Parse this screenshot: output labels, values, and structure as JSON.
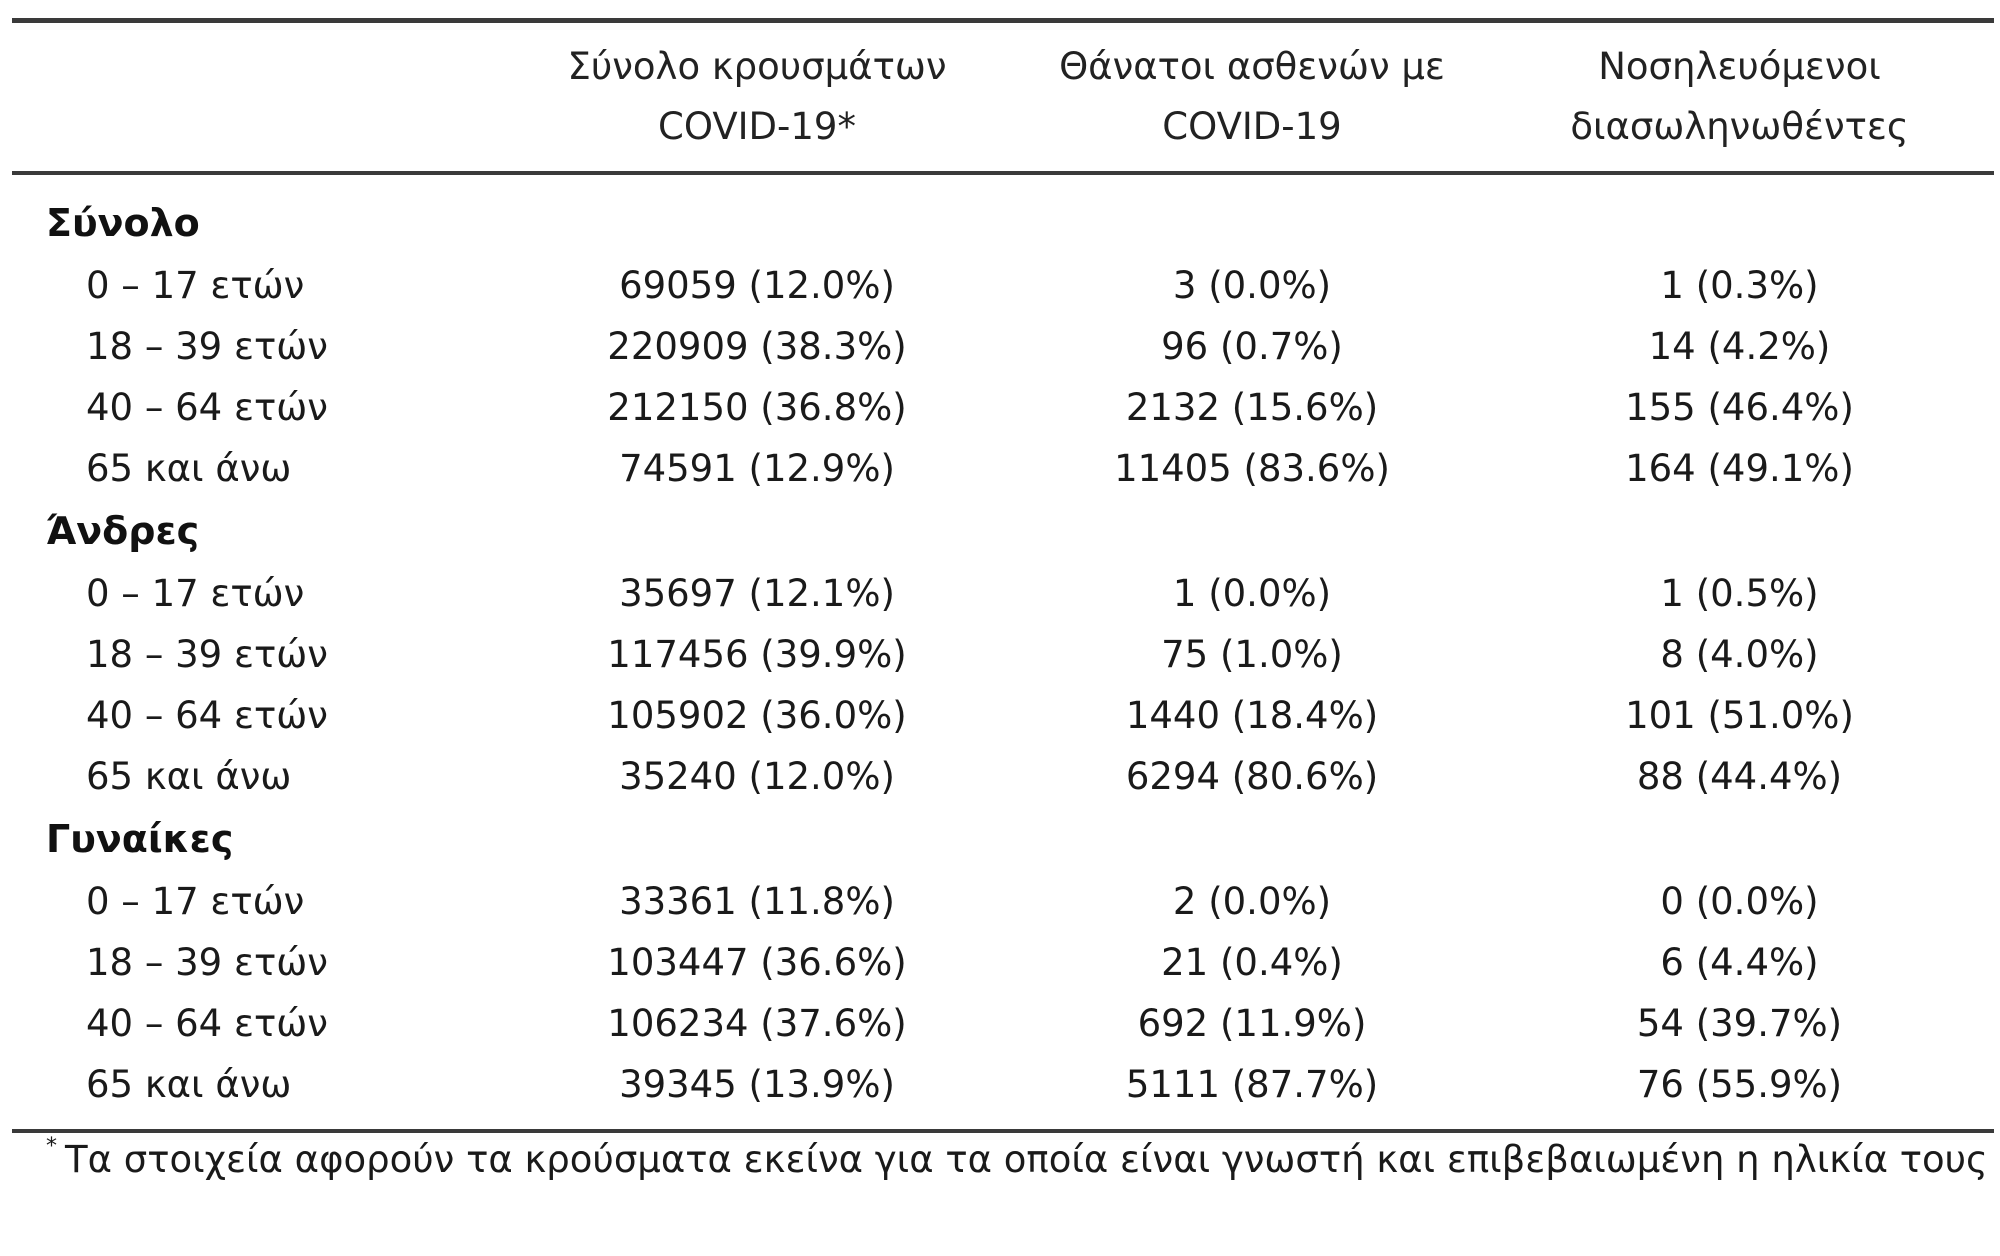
{
  "header": {
    "col1_line1": "Σύνολο κρουσμάτων",
    "col1_line2": "COVID-19*",
    "col2_line1": "Θάνατοι ασθενών με",
    "col2_line2": "COVID-19",
    "col3_line1": "Νοσηλευόμενοι",
    "col3_line2": "διασωληνωθέντες"
  },
  "groups": [
    {
      "title": "Σύνολο",
      "rows": [
        {
          "label": "0 – 17 ετών",
          "cases": "69059 (12.0%)",
          "deaths": "3 (0.0%)",
          "intubated": "1 (0.3%)"
        },
        {
          "label": "18 – 39 ετών",
          "cases": "220909 (38.3%)",
          "deaths": "96 (0.7%)",
          "intubated": "14 (4.2%)"
        },
        {
          "label": "40 – 64 ετών",
          "cases": "212150 (36.8%)",
          "deaths": "2132 (15.6%)",
          "intubated": "155 (46.4%)"
        },
        {
          "label": "65 και άνω",
          "cases": "74591 (12.9%)",
          "deaths": "11405 (83.6%)",
          "intubated": "164 (49.1%)"
        }
      ]
    },
    {
      "title": "Άνδρες",
      "rows": [
        {
          "label": "0 – 17 ετών",
          "cases": "35697 (12.1%)",
          "deaths": "1 (0.0%)",
          "intubated": "1 (0.5%)"
        },
        {
          "label": "18 – 39 ετών",
          "cases": "117456 (39.9%)",
          "deaths": "75 (1.0%)",
          "intubated": "8 (4.0%)"
        },
        {
          "label": "40 – 64 ετών",
          "cases": "105902 (36.0%)",
          "deaths": "1440 (18.4%)",
          "intubated": "101 (51.0%)"
        },
        {
          "label": "65 και άνω",
          "cases": "35240 (12.0%)",
          "deaths": "6294 (80.6%)",
          "intubated": "88 (44.4%)"
        }
      ]
    },
    {
      "title": "Γυναίκες",
      "rows": [
        {
          "label": "0 – 17 ετών",
          "cases": "33361 (11.8%)",
          "deaths": "2 (0.0%)",
          "intubated": "0 (0.0%)"
        },
        {
          "label": "18 – 39 ετών",
          "cases": "103447 (36.6%)",
          "deaths": "21 (0.4%)",
          "intubated": "6 (4.4%)"
        },
        {
          "label": "40 – 64 ετών",
          "cases": "106234 (37.6%)",
          "deaths": "692 (11.9%)",
          "intubated": "54 (39.7%)"
        },
        {
          "label": "65 και άνω",
          "cases": "39345 (13.9%)",
          "deaths": "5111 (87.7%)",
          "intubated": "76 (55.9%)"
        }
      ]
    }
  ],
  "footnote": {
    "marker": "*",
    "text": "Τα στοιχεία αφορούν τα κρούσματα εκείνα για τα οποία είναι γνωστή και επιβεβαιωμένη η ηλικία τους"
  }
}
